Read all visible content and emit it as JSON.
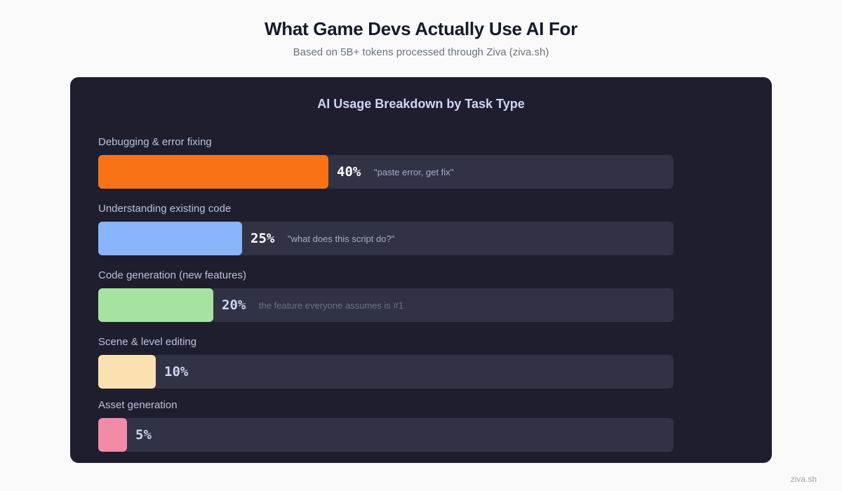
{
  "header": {
    "title": "What Game Devs Actually Use AI For",
    "subtitle": "Based on 5B+ tokens processed through Ziva (ziva.sh)"
  },
  "footer": {
    "text": "ziva.sh"
  },
  "colors": {
    "page_bg": "#fafafa",
    "card_bg": "#1e1e2e",
    "track_bg": "#313244"
  },
  "chart_data": {
    "type": "bar",
    "orientation": "horizontal",
    "title": "AI Usage Breakdown by Task Type",
    "unit": "%",
    "xlim": [
      0,
      100
    ],
    "categories": [
      "Debugging & error fixing",
      "Understanding existing code",
      "Code generation (new features)",
      "Scene & level editing",
      "Asset generation"
    ],
    "values": [
      40,
      25,
      20,
      10,
      5
    ],
    "value_labels": [
      "40%",
      "25%",
      "20%",
      "10%",
      "5%"
    ],
    "annotations": [
      "\"paste error, get fix\"",
      "\"what does this script do?\"",
      "the feature everyone assumes is #1",
      "",
      ""
    ],
    "bar_colors": [
      "#f97316",
      "#89b4fa",
      "#a6e3a1",
      "#f9e2af",
      "#f38ba8"
    ],
    "pct_colors": [
      "#ffffff",
      "#ffffff",
      "#cdd6f4",
      "#cdd6f4",
      "#cdd6f4"
    ],
    "annotation_colors": [
      "#a6adc8",
      "#a6adc8",
      "#6c7086",
      "#6c7086",
      "#6c7086"
    ]
  }
}
